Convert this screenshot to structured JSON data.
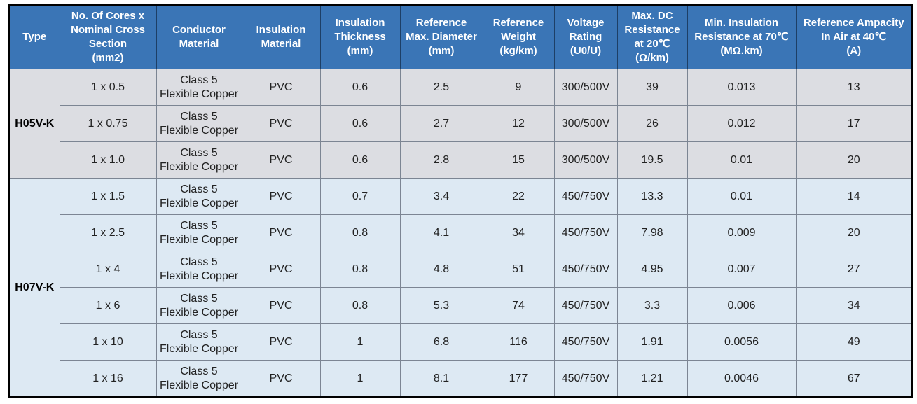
{
  "headers": [
    [
      "Type"
    ],
    [
      "No. Of Cores x",
      "Nominal Cross",
      "Section",
      "(mm2)"
    ],
    [
      "Conductor",
      "Material"
    ],
    [
      "Insulation",
      "Material"
    ],
    [
      "Insulation",
      "Thickness",
      "(mm)"
    ],
    [
      "Reference",
      "Max. Diameter",
      "(mm)"
    ],
    [
      "Reference",
      "Weight",
      "(kg/km)"
    ],
    [
      "Voltage",
      "Rating",
      "(U0/U)"
    ],
    [
      "Max. DC",
      "Resistance",
      "at 20℃",
      "(Ω/km)"
    ],
    [
      "Min. Insulation",
      "Resistance at 70℃",
      "(MΩ.km)"
    ],
    [
      "Reference Ampacity",
      "In Air at 40℃",
      "(A)"
    ]
  ],
  "groups": [
    {
      "type": "H05V-K",
      "rows": [
        {
          "cores": "1 x 0.5",
          "conductor": [
            "Class 5",
            "Flexible Copper"
          ],
          "insulation": "PVC",
          "thickness": "0.6",
          "diameter": "2.5",
          "weight": "9",
          "voltage": "300/500V",
          "resistance": "39",
          "ins_resistance": "0.013",
          "ampacity": "13"
        },
        {
          "cores": "1 x 0.75",
          "conductor": [
            "Class 5",
            "Flexible Copper"
          ],
          "insulation": "PVC",
          "thickness": "0.6",
          "diameter": "2.7",
          "weight": "12",
          "voltage": "300/500V",
          "resistance": "26",
          "ins_resistance": "0.012",
          "ampacity": "17"
        },
        {
          "cores": "1 x 1.0",
          "conductor": [
            "Class 5",
            "Flexible Copper"
          ],
          "insulation": "PVC",
          "thickness": "0.6",
          "diameter": "2.8",
          "weight": "15",
          "voltage": "300/500V",
          "resistance": "19.5",
          "ins_resistance": "0.01",
          "ampacity": "20"
        }
      ]
    },
    {
      "type": "H07V-K",
      "rows": [
        {
          "cores": "1 x 1.5",
          "conductor": [
            "Class 5",
            "Flexible Copper"
          ],
          "insulation": "PVC",
          "thickness": "0.7",
          "diameter": "3.4",
          "weight": "22",
          "voltage": "450/750V",
          "resistance": "13.3",
          "ins_resistance": "0.01",
          "ampacity": "14"
        },
        {
          "cores": "1 x 2.5",
          "conductor": [
            "Class 5",
            "Flexible Copper"
          ],
          "insulation": "PVC",
          "thickness": "0.8",
          "diameter": "4.1",
          "weight": "34",
          "voltage": "450/750V",
          "resistance": "7.98",
          "ins_resistance": "0.009",
          "ampacity": "20"
        },
        {
          "cores": "1 x 4",
          "conductor": [
            "Class 5",
            "Flexible Copper"
          ],
          "insulation": "PVC",
          "thickness": "0.8",
          "diameter": "4.8",
          "weight": "51",
          "voltage": "450/750V",
          "resistance": "4.95",
          "ins_resistance": "0.007",
          "ampacity": "27"
        },
        {
          "cores": "1 x 6",
          "conductor": [
            "Class 5",
            "Flexible Copper"
          ],
          "insulation": "PVC",
          "thickness": "0.8",
          "diameter": "5.3",
          "weight": "74",
          "voltage": "450/750V",
          "resistance": "3.3",
          "ins_resistance": "0.006",
          "ampacity": "34"
        },
        {
          "cores": "1 x 10",
          "conductor": [
            "Class 5",
            "Flexible Copper"
          ],
          "insulation": "PVC",
          "thickness": "1",
          "diameter": "6.8",
          "weight": "116",
          "voltage": "450/750V",
          "resistance": "1.91",
          "ins_resistance": "0.0056",
          "ampacity": "49"
        },
        {
          "cores": "1 x 16",
          "conductor": [
            "Class 5",
            "Flexible Copper"
          ],
          "insulation": "PVC",
          "thickness": "1",
          "diameter": "8.1",
          "weight": "177",
          "voltage": "450/750V",
          "resistance": "1.21",
          "ins_resistance": "0.0046",
          "ampacity": "67"
        }
      ]
    }
  ],
  "colors": {
    "header_bg": "#3a75b6",
    "group_h05_bg": "#dcdde2",
    "group_h07_bg": "#dde9f3"
  }
}
